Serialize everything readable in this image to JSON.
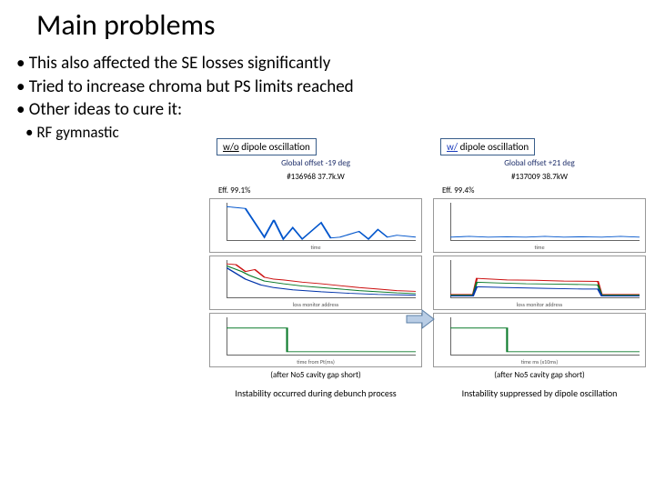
{
  "title": "Main problems",
  "bullets": [
    "This also affected the SE losses significantly",
    "Tried to increase chroma but PS limits reached",
    "Other ideas to cure it:"
  ],
  "sub_bullets": [
    "RF gymnastic"
  ],
  "arrow_fill": "#b9cde5",
  "arrow_stroke": "#5b7fa6",
  "panels": [
    {
      "label_html": "w/o dipole oscillation",
      "label_color": "#000000",
      "info1": "Global offset -19 deg",
      "info1_color": "#1f2f6b",
      "info2": "#136968  37.7k.W",
      "info3": "Eff. 99.1%",
      "footer": "(after No5 cavity gap short)",
      "caption": "Instability occurred during debunch process",
      "chart1": {
        "xlabel": "time",
        "series": [
          {
            "color": "#0055cc",
            "points": [
              [
                0,
                0.9
              ],
              [
                0.1,
                0.85
              ],
              [
                0.2,
                0.1
              ],
              [
                0.25,
                0.55
              ],
              [
                0.3,
                0.05
              ],
              [
                0.35,
                0.35
              ],
              [
                0.4,
                0.05
              ],
              [
                0.5,
                0.48
              ],
              [
                0.55,
                0.08
              ],
              [
                0.6,
                0.1
              ],
              [
                0.7,
                0.25
              ],
              [
                0.75,
                0.05
              ],
              [
                0.8,
                0.3
              ],
              [
                0.85,
                0.1
              ],
              [
                0.9,
                0.15
              ],
              [
                1,
                0.1
              ]
            ]
          }
        ]
      },
      "chart2": {
        "xlabel": "loss monitor address",
        "series": [
          {
            "color": "#cc1111",
            "points": [
              [
                0,
                0.9
              ],
              [
                0.05,
                0.88
              ],
              [
                0.1,
                0.7
              ],
              [
                0.15,
                0.75
              ],
              [
                0.2,
                0.55
              ],
              [
                0.25,
                0.5
              ],
              [
                0.3,
                0.48
              ],
              [
                0.4,
                0.42
              ],
              [
                0.5,
                0.38
              ],
              [
                0.6,
                0.33
              ],
              [
                0.7,
                0.28
              ],
              [
                0.8,
                0.24
              ],
              [
                0.9,
                0.2
              ],
              [
                1,
                0.18
              ]
            ]
          },
          {
            "color": "#0a7a2a",
            "points": [
              [
                0,
                0.85
              ],
              [
                0.08,
                0.7
              ],
              [
                0.12,
                0.6
              ],
              [
                0.2,
                0.45
              ],
              [
                0.3,
                0.38
              ],
              [
                0.4,
                0.32
              ],
              [
                0.5,
                0.28
              ],
              [
                0.6,
                0.24
              ],
              [
                0.7,
                0.2
              ],
              [
                0.8,
                0.17
              ],
              [
                0.9,
                0.14
              ],
              [
                1,
                0.12
              ]
            ]
          },
          {
            "color": "#0033aa",
            "points": [
              [
                0,
                0.8
              ],
              [
                0.1,
                0.5
              ],
              [
                0.18,
                0.35
              ],
              [
                0.25,
                0.28
              ],
              [
                0.35,
                0.22
              ],
              [
                0.5,
                0.17
              ],
              [
                0.65,
                0.13
              ],
              [
                0.8,
                0.1
              ],
              [
                1,
                0.08
              ]
            ]
          }
        ]
      },
      "chart3": {
        "xlabel": "time from Pt(ms)",
        "series": [
          {
            "color": "#0a7a2a",
            "points": [
              [
                0,
                0.72
              ],
              [
                0.32,
                0.72
              ],
              [
                0.32,
                0.1
              ],
              [
                1,
                0.1
              ]
            ]
          }
        ]
      }
    },
    {
      "label_html": "w/  dipole oscillation",
      "label_color": "#1a3bbd",
      "info1": "Global offset +21 deg",
      "info1_color": "#1f2f6b",
      "info2": "#137009  38.7kW",
      "info3": "Eff. 99.4%",
      "footer": "(after No5 cavity gap short)",
      "caption": "Instability suppressed by dipole oscillation",
      "chart1": {
        "xlabel": "time",
        "series": [
          {
            "color": "#0055cc",
            "points": [
              [
                0,
                0.1
              ],
              [
                0.1,
                0.12
              ],
              [
                0.2,
                0.1
              ],
              [
                0.3,
                0.11
              ],
              [
                0.4,
                0.1
              ],
              [
                0.5,
                0.12
              ],
              [
                0.6,
                0.1
              ],
              [
                0.7,
                0.11
              ],
              [
                0.8,
                0.1
              ],
              [
                0.9,
                0.12
              ],
              [
                1,
                0.1
              ]
            ]
          }
        ]
      },
      "chart2": {
        "xlabel": "loss monitor address",
        "series": [
          {
            "color": "#cc1111",
            "points": [
              [
                0,
                0.1
              ],
              [
                0.12,
                0.1
              ],
              [
                0.14,
                0.52
              ],
              [
                0.22,
                0.5
              ],
              [
                0.3,
                0.48
              ],
              [
                0.45,
                0.47
              ],
              [
                0.6,
                0.45
              ],
              [
                0.78,
                0.44
              ],
              [
                0.8,
                0.1
              ],
              [
                1,
                0.1
              ]
            ]
          },
          {
            "color": "#0a7a2a",
            "points": [
              [
                0,
                0.08
              ],
              [
                0.12,
                0.08
              ],
              [
                0.14,
                0.42
              ],
              [
                0.25,
                0.4
              ],
              [
                0.4,
                0.38
              ],
              [
                0.55,
                0.37
              ],
              [
                0.7,
                0.36
              ],
              [
                0.78,
                0.35
              ],
              [
                0.8,
                0.08
              ],
              [
                1,
                0.08
              ]
            ]
          },
          {
            "color": "#0033aa",
            "points": [
              [
                0,
                0.06
              ],
              [
                0.12,
                0.06
              ],
              [
                0.14,
                0.3
              ],
              [
                0.3,
                0.28
              ],
              [
                0.5,
                0.26
              ],
              [
                0.7,
                0.24
              ],
              [
                0.78,
                0.24
              ],
              [
                0.8,
                0.06
              ],
              [
                1,
                0.06
              ]
            ]
          }
        ]
      },
      "chart3": {
        "xlabel": "time ms (x10ms)",
        "series": [
          {
            "color": "#0a7a2a",
            "points": [
              [
                0,
                0.72
              ],
              [
                0.3,
                0.72
              ],
              [
                0.3,
                0.1
              ],
              [
                1,
                0.1
              ]
            ]
          }
        ]
      }
    }
  ]
}
